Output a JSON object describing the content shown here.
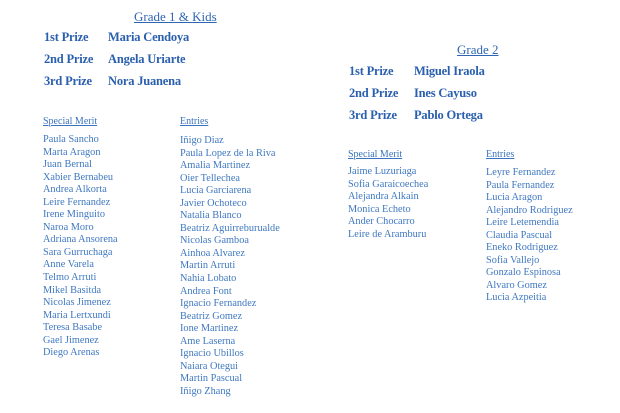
{
  "grade1": {
    "title": "Grade 1 & Kids",
    "prizes": [
      {
        "label": "1st Prize",
        "name": "Maria Cendoya"
      },
      {
        "label": "2nd Prize",
        "name": "Angela Uriarte"
      },
      {
        "label": "3rd Prize",
        "name": "Nora Juanena"
      }
    ],
    "special_merit_label": "Special Merit",
    "special_merit": [
      "Paula Sancho",
      "Marta Aragon",
      "Juan Bernal",
      "Xabier Bernabeu",
      "Andrea Alkorta",
      "Leire Fernandez",
      "Irene Minguito",
      "Naroa Moro",
      "Adriana Ansorena",
      "Sara Gurruchaga",
      "Anne Varela",
      "Telmo Arruti",
      "Mikel Basitda",
      "Nicolas Jimenez",
      "Maria Lertxundi",
      "Teresa Basabe",
      "Gael Jimenez",
      "Diego Arenas"
    ],
    "entries_label": "Entries",
    "entries": [
      "Iñigo Diaz",
      "Paula Lopez de la Riva",
      "Amalia Martinez",
      "Oier Tellechea",
      "Lucia Garciarena",
      "Javier Ochoteco",
      "Natalia Blanco",
      "Beatriz Aguirreburualde",
      "Nicolas Gamboa",
      "Ainhoa Alvarez",
      "Martin Arruti",
      "Nahia Lobato",
      "Andrea Font",
      "Ignacio Fernandez",
      "Beatriz Gomez",
      "Ione Martinez",
      "Ame Laserna",
      "Ignacio Ubillos",
      "Naiara Otegui",
      "Martin Pascual",
      "Iñigo Zhang"
    ]
  },
  "grade2": {
    "title": "Grade 2",
    "prizes": [
      {
        "label": "1st Prize",
        "name": "Miguel Iraola"
      },
      {
        "label": "2nd Prize",
        "name": "Ines Cayuso"
      },
      {
        "label": "3rd Prize",
        "name": "Pablo Ortega"
      }
    ],
    "special_merit_label": "Special Merit",
    "special_merit": [
      "Jaime Luzuriaga",
      "Sofia Garaicoechea",
      "Alejandra Alkain",
      "Monica Echeto",
      "Ander Chocarro",
      "Leire de Aramburu"
    ],
    "entries_label": "Entries",
    "entries": [
      "Leyre Fernandez",
      "Paula Fernandez",
      "Lucia Aragon",
      "Alejandro Rodriguez",
      "Leire Letemendia",
      "Claudia Pascual",
      "Eneko Rodriguez",
      "Sofia Vallejo",
      "Gonzalo Espinosa",
      "Alvaro Gomez",
      "Lucia Azpeitia"
    ]
  }
}
